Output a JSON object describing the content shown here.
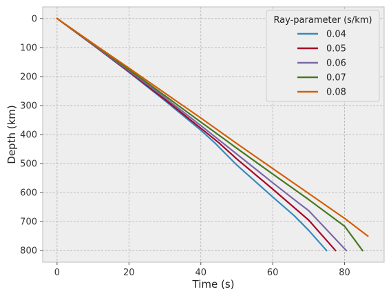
{
  "chart_data": {
    "type": "line",
    "xlabel": "Time (s)",
    "ylabel": "Depth (km)",
    "xlim": [
      -4,
      91
    ],
    "ylim": [
      840,
      -40
    ],
    "y_inverted": true,
    "xticks": [
      0,
      20,
      40,
      60,
      80
    ],
    "yticks": [
      0,
      100,
      200,
      300,
      400,
      500,
      600,
      700,
      800
    ],
    "grid": true,
    "legend": {
      "title": "Ray-parameter (s/km)",
      "placement": "top-right"
    },
    "series": [
      {
        "name": "0.04",
        "color": "#348ABD",
        "x": [
          0,
          10,
          20,
          30,
          40,
          44,
          50,
          60,
          66,
          70,
          75
        ],
        "y": [
          0,
          91,
          185,
          283,
          385,
          430,
          505,
          615,
          680,
          730,
          800
        ]
      },
      {
        "name": "0.05",
        "color": "#A60628",
        "x": [
          0,
          10,
          20,
          30,
          40,
          45,
          50,
          60,
          66,
          70,
          77.5
        ],
        "y": [
          0,
          91,
          183,
          279,
          378,
          428,
          484,
          588,
          652,
          695,
          800
        ]
      },
      {
        "name": "0.06",
        "color": "#7A68A6",
        "x": [
          0,
          10,
          20,
          30,
          40,
          46,
          50,
          60,
          67,
          70,
          80.5
        ],
        "y": [
          0,
          90,
          180,
          273,
          369,
          428,
          467,
          566,
          634,
          662,
          800
        ]
      },
      {
        "name": "0.07",
        "color": "#467821",
        "x": [
          0,
          10,
          20,
          30,
          40,
          47,
          50,
          60,
          70,
          80,
          85
        ],
        "y": [
          0,
          88,
          176,
          266,
          357,
          420,
          447,
          536,
          624,
          716,
          800
        ]
      },
      {
        "name": "0.08",
        "color": "#D55E00",
        "x": [
          0,
          10,
          20,
          30,
          40,
          50,
          60,
          70,
          80,
          86.5
        ],
        "y": [
          0,
          86,
          171,
          257,
          343,
          431,
          517,
          603,
          689,
          750
        ]
      }
    ]
  }
}
